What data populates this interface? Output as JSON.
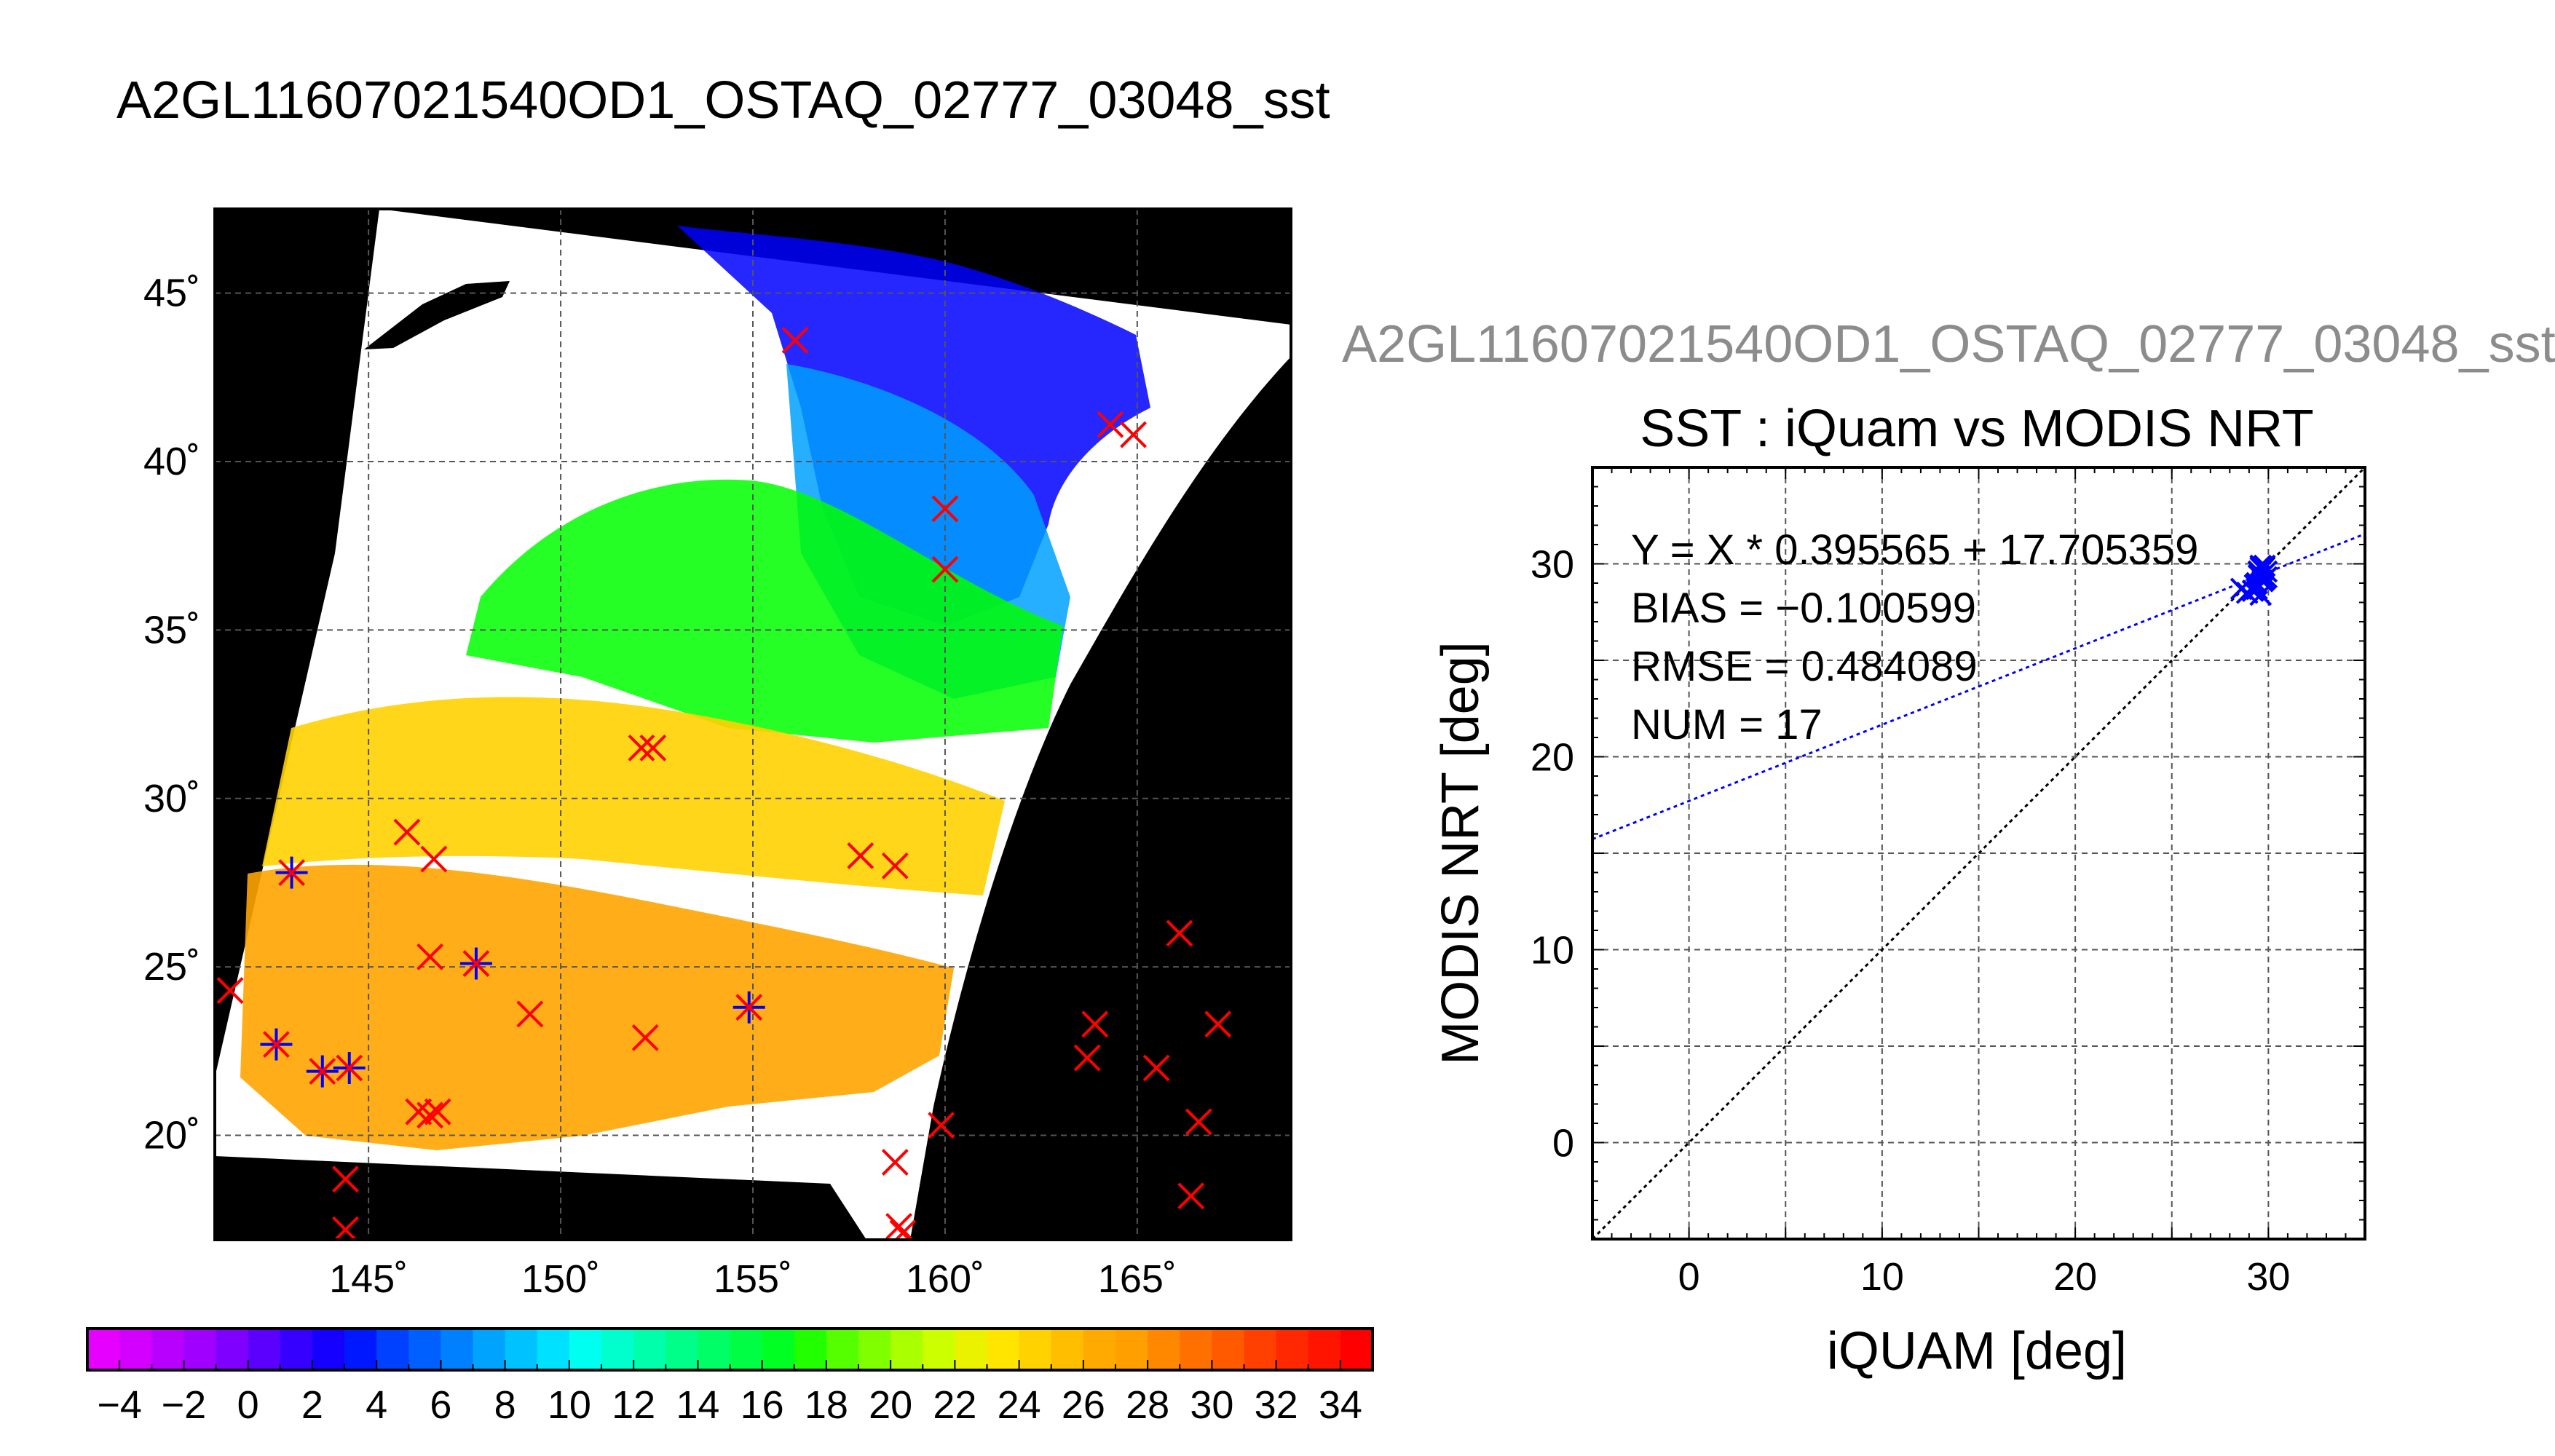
{
  "figure": {
    "main_title": "A2GL11607021540OD1_OSTAQ_02777_03048_sst",
    "secondary_title": "A2GL11607021540OD1_OSTAQ_02777_03048_sst"
  },
  "chart_data": [
    {
      "type": "map",
      "x_ticks": [
        "145˚",
        "150˚",
        "155˚",
        "160˚",
        "165˚"
      ],
      "y_ticks": [
        "45˚",
        "40˚",
        "35˚",
        "30˚",
        "25˚",
        "20˚"
      ],
      "xlim": [
        141,
        169
      ],
      "ylim": [
        16.9,
        47.5
      ],
      "grid": true,
      "swath_colors": [
        "#0000ff",
        "#00a0ff",
        "#00ff00",
        "#ffd200",
        "#ffa500"
      ],
      "marker_color_red": "#ff0000",
      "marker_color_blue": "#0000ff",
      "markers": [
        {
          "lon": 156.1,
          "lat": 43.6
        },
        {
          "lon": 164.3,
          "lat": 41.1
        },
        {
          "lon": 164.9,
          "lat": 40.8
        },
        {
          "lon": 160.0,
          "lat": 38.6
        },
        {
          "lon": 160.0,
          "lat": 36.8
        },
        {
          "lon": 152.1,
          "lat": 31.5
        },
        {
          "lon": 152.4,
          "lat": 31.5
        },
        {
          "lon": 157.8,
          "lat": 28.3
        },
        {
          "lon": 158.7,
          "lat": 28.0
        },
        {
          "lon": 143.0,
          "lat": 27.8,
          "blue": true
        },
        {
          "lon": 146.0,
          "lat": 29.0
        },
        {
          "lon": 146.7,
          "lat": 28.2
        },
        {
          "lon": 166.1,
          "lat": 26.0
        },
        {
          "lon": 146.6,
          "lat": 25.3
        },
        {
          "lon": 147.8,
          "lat": 25.1,
          "blue": true
        },
        {
          "lon": 141.4,
          "lat": 24.3
        },
        {
          "lon": 149.2,
          "lat": 23.6
        },
        {
          "lon": 154.9,
          "lat": 23.8,
          "blue": true
        },
        {
          "lon": 163.9,
          "lat": 23.3
        },
        {
          "lon": 167.1,
          "lat": 23.3
        },
        {
          "lon": 152.2,
          "lat": 22.9
        },
        {
          "lon": 142.6,
          "lat": 22.7,
          "blue": true
        },
        {
          "lon": 163.7,
          "lat": 22.3
        },
        {
          "lon": 143.8,
          "lat": 21.9,
          "blue": true
        },
        {
          "lon": 144.5,
          "lat": 22.0,
          "blue": true
        },
        {
          "lon": 165.5,
          "lat": 22.0
        },
        {
          "lon": 146.3,
          "lat": 20.7
        },
        {
          "lon": 146.6,
          "lat": 20.6
        },
        {
          "lon": 146.8,
          "lat": 20.7
        },
        {
          "lon": 159.9,
          "lat": 20.3
        },
        {
          "lon": 166.6,
          "lat": 20.4
        },
        {
          "lon": 158.7,
          "lat": 19.2
        },
        {
          "lon": 144.4,
          "lat": 18.7
        },
        {
          "lon": 166.4,
          "lat": 18.2
        },
        {
          "lon": 144.4,
          "lat": 17.2
        },
        {
          "lon": 158.8,
          "lat": 17.3
        },
        {
          "lon": 158.9,
          "lat": 17.1
        }
      ]
    },
    {
      "type": "colorbar",
      "tick_labels": [
        "−4",
        "−2",
        "0",
        "2",
        "4",
        "6",
        "8",
        "10",
        "12",
        "14",
        "16",
        "18",
        "20",
        "22",
        "24",
        "26",
        "28",
        "30",
        "32",
        "34"
      ],
      "range": [
        -5,
        35
      ],
      "colors": [
        "#e600ff",
        "#d300ff",
        "#b800ff",
        "#9f00ff",
        "#8000ff",
        "#5b00ff",
        "#3500ff",
        "#1500ff",
        "#0018ff",
        "#0040ff",
        "#0060ff",
        "#0080ff",
        "#00a4ff",
        "#00c2ff",
        "#00e0ff",
        "#00fff0",
        "#00ffcc",
        "#00ffaa",
        "#00ff88",
        "#00ff66",
        "#00ff44",
        "#00ff22",
        "#22ff00",
        "#55ff00",
        "#80ff00",
        "#aaff00",
        "#ccff00",
        "#ebf200",
        "#ffe500",
        "#ffd200",
        "#ffbe00",
        "#ffaa00",
        "#ffa000",
        "#ff8800",
        "#ff7000",
        "#ff5a00",
        "#ff4000",
        "#ff2800",
        "#ff1400",
        "#ff0000"
      ]
    },
    {
      "type": "scatter",
      "title": "SST : iQuam vs MODIS NRT",
      "xlabel": "iQUAM [deg]",
      "ylabel": "MODIS NRT [deg]",
      "xlim": [
        -5,
        35
      ],
      "ylim": [
        -5,
        35
      ],
      "x_ticks": [
        "0",
        "10",
        "20",
        "30"
      ],
      "y_ticks": [
        "0",
        "10",
        "20",
        "30"
      ],
      "grid": true,
      "annotations": [
        "Y = X * 0.395565 + 17.705359",
        "BIAS = −0.100599",
        "RMSE = 0.484089",
        "NUM = 17"
      ],
      "fit": {
        "slope": 0.395565,
        "intercept": 17.705359,
        "color": "#0000ff"
      },
      "identity_line_color": "#000000",
      "point_color": "#0000ff",
      "points": [
        {
          "x": 28.6,
          "y": 28.7
        },
        {
          "x": 28.9,
          "y": 28.5
        },
        {
          "x": 29.2,
          "y": 28.6
        },
        {
          "x": 29.4,
          "y": 29.0
        },
        {
          "x": 29.5,
          "y": 29.4
        },
        {
          "x": 29.6,
          "y": 28.4
        },
        {
          "x": 29.7,
          "y": 29.7
        },
        {
          "x": 29.8,
          "y": 29.9
        },
        {
          "x": 29.9,
          "y": 29.6
        },
        {
          "x": 29.6,
          "y": 29.8
        },
        {
          "x": 29.3,
          "y": 28.9
        },
        {
          "x": 29.8,
          "y": 29.2
        },
        {
          "x": 29.5,
          "y": 29.6
        },
        {
          "x": 29.9,
          "y": 29.3
        },
        {
          "x": 29.4,
          "y": 28.7
        },
        {
          "x": 29.7,
          "y": 29.1
        },
        {
          "x": 29.6,
          "y": 29.9
        }
      ]
    }
  ]
}
